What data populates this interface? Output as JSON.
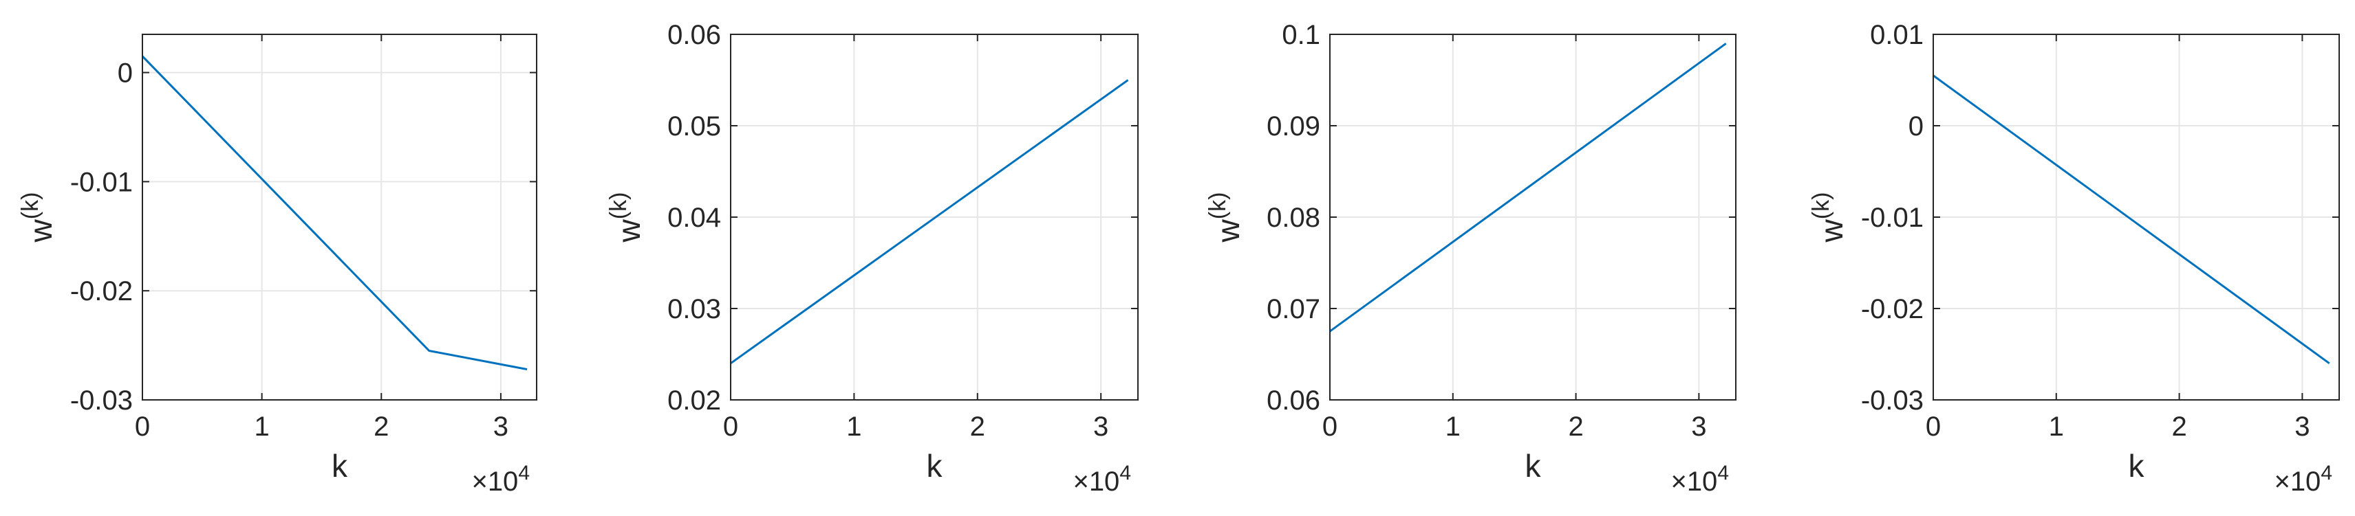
{
  "chart_data": [
    {
      "type": "line",
      "xlabel": "k",
      "ylabel": "w",
      "ylabel_sup": "(k)",
      "x_multiplier": "×10",
      "x_multiplier_exp": "4",
      "xlim": [
        0,
        33000
      ],
      "ylim": [
        -0.03,
        0.0035
      ],
      "xticks": [
        0,
        10000,
        20000,
        30000
      ],
      "xtick_labels": [
        "0",
        "1",
        "2",
        "3"
      ],
      "yticks": [
        -0.03,
        -0.02,
        -0.01,
        0
      ],
      "ytick_labels": [
        "-0.03",
        "-0.02",
        "-0.01",
        "0"
      ],
      "grid": true,
      "series": [
        {
          "color": "#0072BD",
          "x": [
            0,
            8000,
            16000,
            24000,
            32200
          ],
          "y": [
            0.0015,
            -0.0075,
            -0.0165,
            -0.0255,
            -0.0272
          ]
        }
      ]
    },
    {
      "type": "line",
      "xlabel": "k",
      "ylabel": "w",
      "ylabel_sup": "(k)",
      "x_multiplier": "×10",
      "x_multiplier_exp": "4",
      "xlim": [
        0,
        33000
      ],
      "ylim": [
        0.02,
        0.06
      ],
      "xticks": [
        0,
        10000,
        20000,
        30000
      ],
      "xtick_labels": [
        "0",
        "1",
        "2",
        "3"
      ],
      "yticks": [
        0.02,
        0.03,
        0.04,
        0.05,
        0.06
      ],
      "ytick_labels": [
        "0.02",
        "0.03",
        "0.04",
        "0.05",
        "0.06"
      ],
      "grid": true,
      "series": [
        {
          "color": "#0072BD",
          "x": [
            0,
            32200
          ],
          "y": [
            0.024,
            0.055
          ]
        }
      ]
    },
    {
      "type": "line",
      "xlabel": "k",
      "ylabel": "w",
      "ylabel_sup": "(k)",
      "x_multiplier": "×10",
      "x_multiplier_exp": "4",
      "xlim": [
        0,
        33000
      ],
      "ylim": [
        0.06,
        0.1
      ],
      "xticks": [
        0,
        10000,
        20000,
        30000
      ],
      "xtick_labels": [
        "0",
        "1",
        "2",
        "3"
      ],
      "yticks": [
        0.06,
        0.07,
        0.08,
        0.09,
        0.1
      ],
      "ytick_labels": [
        "0.06",
        "0.07",
        "0.08",
        "0.09",
        "0.1"
      ],
      "grid": true,
      "series": [
        {
          "color": "#0072BD",
          "x": [
            0,
            32200
          ],
          "y": [
            0.0675,
            0.099
          ]
        }
      ]
    },
    {
      "type": "line",
      "xlabel": "k",
      "ylabel": "w",
      "ylabel_sup": "(k)",
      "x_multiplier": "×10",
      "x_multiplier_exp": "4",
      "xlim": [
        0,
        33000
      ],
      "ylim": [
        -0.03,
        0.01
      ],
      "xticks": [
        0,
        10000,
        20000,
        30000
      ],
      "xtick_labels": [
        "0",
        "1",
        "2",
        "3"
      ],
      "yticks": [
        -0.03,
        -0.02,
        -0.01,
        0,
        0.01
      ],
      "ytick_labels": [
        "-0.03",
        "-0.02",
        "-0.01",
        "0",
        "0.01"
      ],
      "grid": true,
      "series": [
        {
          "color": "#0072BD",
          "x": [
            0,
            32200
          ],
          "y": [
            0.0055,
            -0.026
          ]
        }
      ]
    }
  ]
}
